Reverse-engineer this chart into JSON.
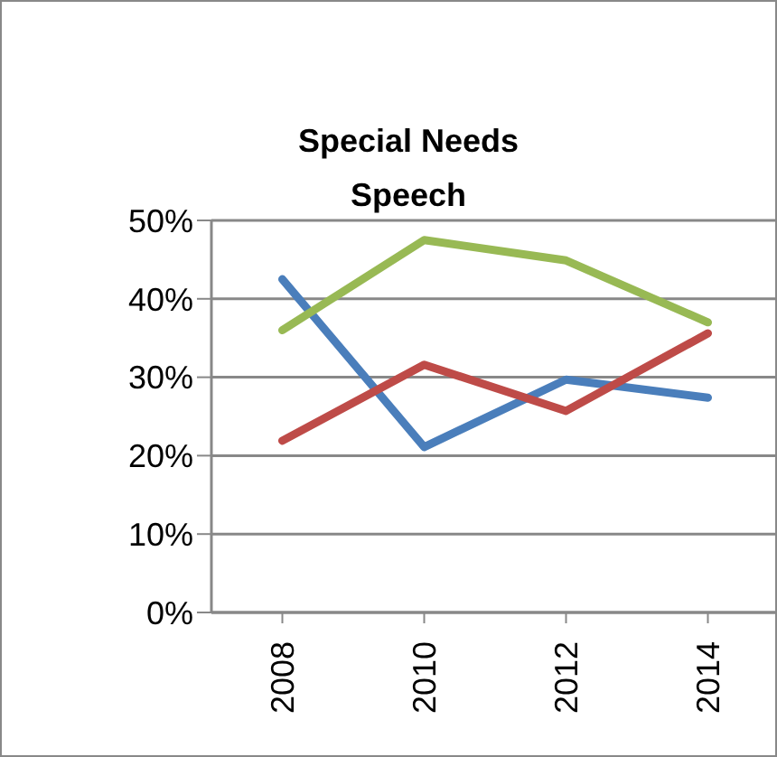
{
  "chart_data": {
    "type": "line",
    "title": "Special Needs Speech",
    "categories": [
      "2008",
      "2010",
      "2012",
      "2014"
    ],
    "series": [
      {
        "color": "#4a7ebb",
        "values": [
          42.5,
          21.1,
          29.7,
          27.4
        ]
      },
      {
        "color": "#be4b48",
        "values": [
          21.9,
          31.6,
          25.7,
          35.6
        ]
      },
      {
        "color": "#98b954",
        "values": [
          36.0,
          47.5,
          44.9,
          37.0
        ]
      }
    ],
    "ylim": [
      0,
      50
    ],
    "yticks": [
      {
        "value": 0,
        "label": "0%"
      },
      {
        "value": 10,
        "label": "10%"
      },
      {
        "value": 20,
        "label": "20%"
      },
      {
        "value": 30,
        "label": "30%"
      },
      {
        "value": 40,
        "label": "40%"
      },
      {
        "value": 50,
        "label": "50%"
      }
    ],
    "grid": "y",
    "marker": "none",
    "line_style": "solid",
    "legend": false
  }
}
